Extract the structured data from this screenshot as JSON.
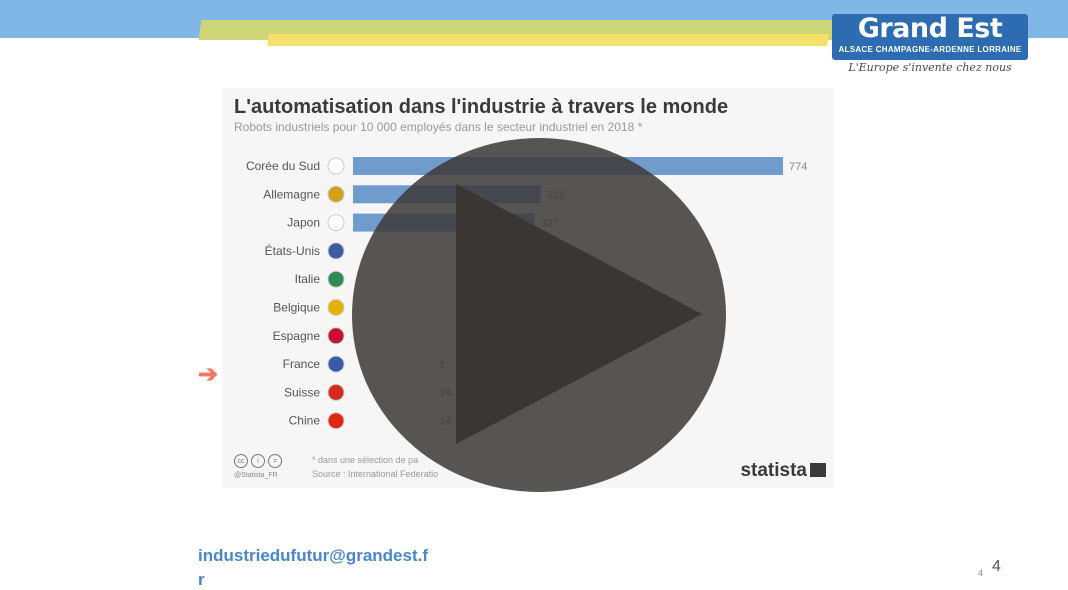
{
  "branding": {
    "logo_name": "Grand Est",
    "logo_subtitle": "ALSACE CHAMPAGNE-ARDENNE LORRAINE",
    "tagline": "L'Europe s'invente chez nous"
  },
  "chart_data": {
    "type": "bar",
    "title": "L'automatisation dans l'industrie à travers le monde",
    "subtitle": "Robots industriels pour 10 000 employés dans le secteur industriel en 2018 *",
    "categories": [
      "Corée du Sud",
      "Allemagne",
      "Japon",
      "États-Unis",
      "Italie",
      "Belgique",
      "Espagne",
      "France",
      "Suisse",
      "Chine"
    ],
    "values": [
      774,
      338,
      327,
      null,
      null,
      null,
      null,
      null,
      null,
      null
    ],
    "value_labels": [
      "774",
      "338",
      "327",
      "",
      "",
      "",
      "",
      "1",
      "14",
      "14"
    ],
    "bar_color": "#6f9ccd",
    "xlim": [
      0,
      774
    ],
    "highlight": "France"
  },
  "chart_footer": {
    "license_handle": "@Statista_FR",
    "note": "* dans une sélection de pa",
    "source": "Source : International Federatio",
    "brand": "statista"
  },
  "footer": {
    "email": "industriedufutur@grandest.f",
    "email_overflow": "r",
    "page_small": "4",
    "page_big": "4"
  },
  "colors": {
    "top_band": "#7fb8e6",
    "accent_olive": "#cfd67a",
    "accent_yellow": "#f5e06a",
    "logo_bg": "#2d6cb0",
    "arrow": "#f07a63",
    "play_overlay": "#3c3a39"
  }
}
